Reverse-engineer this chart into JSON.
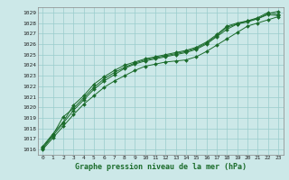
{
  "title": "Graphe pression niveau de la mer (hPa)",
  "bg_color": "#cce8e8",
  "grid_color": "#99cccc",
  "line_color": "#1a6b2a",
  "marker_color": "#1a6b2a",
  "xlim": [
    -0.5,
    23.5
  ],
  "ylim": [
    1015.5,
    1029.5
  ],
  "yticks": [
    1016,
    1017,
    1018,
    1019,
    1020,
    1021,
    1022,
    1023,
    1024,
    1025,
    1026,
    1027,
    1028,
    1029
  ],
  "xticks": [
    0,
    1,
    2,
    3,
    4,
    5,
    6,
    7,
    8,
    9,
    10,
    11,
    12,
    13,
    14,
    15,
    16,
    17,
    18,
    19,
    20,
    21,
    22,
    23
  ],
  "series": [
    [
      1016.0,
      1017.1,
      1018.2,
      1019.3,
      1020.3,
      1021.1,
      1021.9,
      1022.5,
      1023.0,
      1023.5,
      1023.9,
      1024.1,
      1024.3,
      1024.4,
      1024.5,
      1024.8,
      1025.3,
      1025.9,
      1026.5,
      1027.1,
      1027.7,
      1028.0,
      1028.3,
      1028.6
    ],
    [
      1016.1,
      1017.3,
      1018.5,
      1019.7,
      1020.7,
      1021.7,
      1022.5,
      1023.1,
      1023.7,
      1024.1,
      1024.4,
      1024.6,
      1024.8,
      1025.0,
      1025.2,
      1025.5,
      1026.0,
      1026.7,
      1027.4,
      1027.9,
      1028.2,
      1028.4,
      1028.9,
      1029.1
    ],
    [
      1016.3,
      1017.5,
      1018.6,
      1020.2,
      1021.1,
      1022.2,
      1022.9,
      1023.5,
      1024.0,
      1024.3,
      1024.6,
      1024.8,
      1025.0,
      1025.2,
      1025.4,
      1025.7,
      1026.2,
      1026.9,
      1027.7,
      1028.0,
      1028.2,
      1028.5,
      1029.0,
      1028.8
    ],
    [
      1016.2,
      1017.4,
      1019.1,
      1019.9,
      1020.9,
      1021.9,
      1022.7,
      1023.3,
      1023.8,
      1024.2,
      1024.5,
      1024.7,
      1024.9,
      1025.1,
      1025.3,
      1025.6,
      1026.1,
      1026.8,
      1027.6,
      1027.9,
      1028.1,
      1028.4,
      1028.8,
      1028.7
    ]
  ]
}
